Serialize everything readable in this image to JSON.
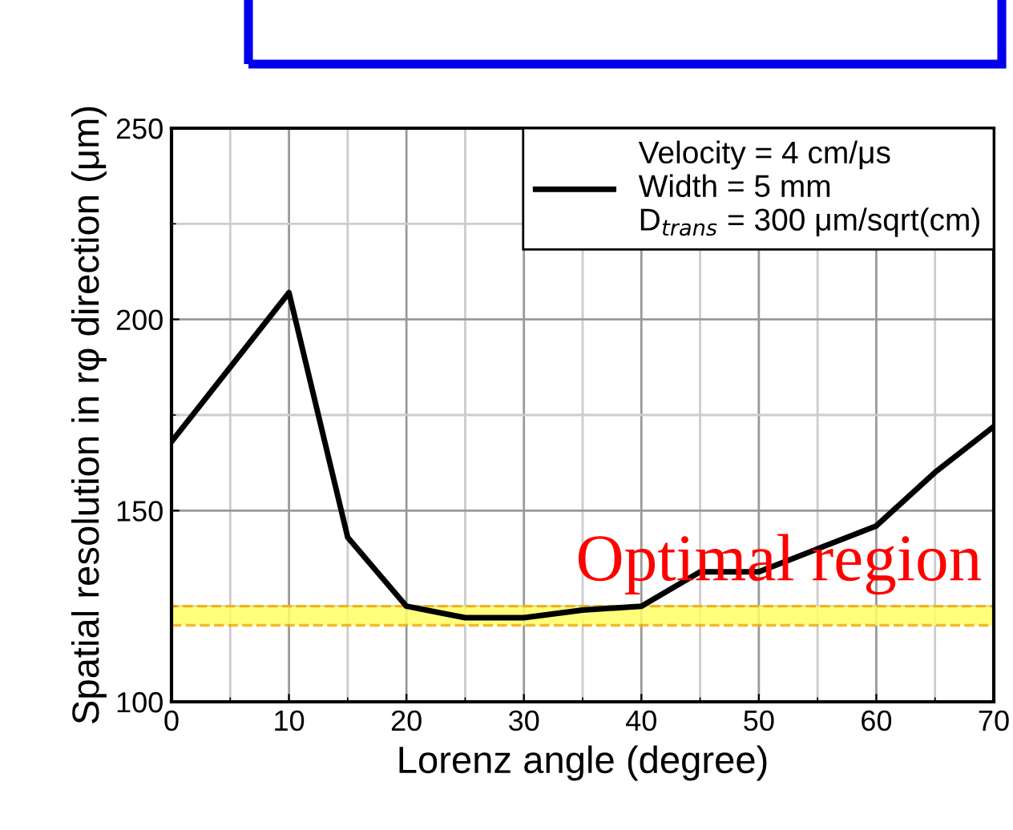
{
  "chart_data": {
    "type": "line",
    "xlabel": "Lorenz angle (degree)",
    "ylabel": "Spatial resolution in rφ direction (μm)",
    "x": [
      0,
      10,
      15,
      20,
      25,
      30,
      35,
      40,
      45,
      50,
      55,
      60,
      65,
      70
    ],
    "series": [
      {
        "name": "Velocity = 4 cm/μs\nWidth = 5 mm\nD$_{trans}$ = 300 μm/sqrt(cm)",
        "color": "#000000",
        "values": [
          168,
          207,
          143,
          125,
          122,
          122,
          124,
          125,
          134,
          134,
          140,
          146,
          160,
          172
        ]
      }
    ],
    "xlim": [
      0,
      70
    ],
    "ylim": [
      100,
      250
    ],
    "xticks": [
      0,
      10,
      20,
      30,
      40,
      50,
      60,
      70
    ],
    "yticks": [
      100,
      150,
      200,
      250
    ],
    "bands": [
      {
        "axis": "y",
        "from": 120,
        "to": 125,
        "label": "Optimal region",
        "color": "#ffff66"
      }
    ],
    "grid": true,
    "legend": "top right",
    "marker": "none",
    "line_style": "solid"
  }
}
